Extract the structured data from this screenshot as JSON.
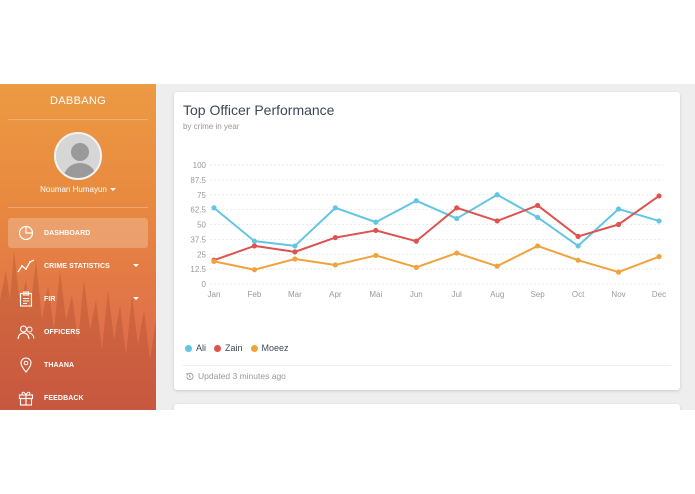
{
  "sidebar": {
    "brand": "DABBANG",
    "user_name": "Nouman Humayun",
    "items": [
      {
        "label": "DASHBOARD",
        "icon": "pie-chart-icon",
        "active": true
      },
      {
        "label": "CRIME STATISTICS",
        "icon": "trend-line-icon",
        "dropdown": true
      },
      {
        "label": "FIR",
        "icon": "clipboard-icon",
        "dropdown": true
      },
      {
        "label": "OFFICERS",
        "icon": "people-icon"
      },
      {
        "label": "THAANA",
        "icon": "location-pin-icon"
      },
      {
        "label": "FEEDBACK",
        "icon": "gift-icon"
      }
    ]
  },
  "card": {
    "title": "Top Officer Performance",
    "subtitle": "by crime in year",
    "updated": "Updated 3 minutes ago"
  },
  "colors": {
    "Ali": "#62c6e3",
    "Zain": "#dd5350",
    "Moeez": "#f0a33c",
    "sidebar_top": "#ec9a43",
    "sidebar_bottom": "#d9624a"
  },
  "chart_data": {
    "type": "line",
    "categories": [
      "Jan",
      "Feb",
      "Mar",
      "Apr",
      "Mai",
      "Jun",
      "Jul",
      "Aug",
      "Sep",
      "Oct",
      "Nov",
      "Dec"
    ],
    "ylim": [
      0,
      100
    ],
    "yticks": [
      "0",
      "12.5",
      "25",
      "37.5",
      "50",
      "62.5",
      "75",
      "87.5",
      "100"
    ],
    "grid": true,
    "legend": "bottom-left",
    "series": [
      {
        "name": "Ali",
        "values": [
          64,
          36,
          32,
          64,
          52,
          70,
          55,
          75,
          56,
          32,
          63,
          53
        ]
      },
      {
        "name": "Zain",
        "values": [
          20,
          32,
          27,
          39,
          45,
          36,
          64,
          53,
          66,
          40,
          50,
          74
        ]
      },
      {
        "name": "Moeez",
        "values": [
          19,
          12,
          21,
          16,
          24,
          14,
          26,
          15,
          32,
          20,
          10,
          23
        ]
      }
    ]
  }
}
